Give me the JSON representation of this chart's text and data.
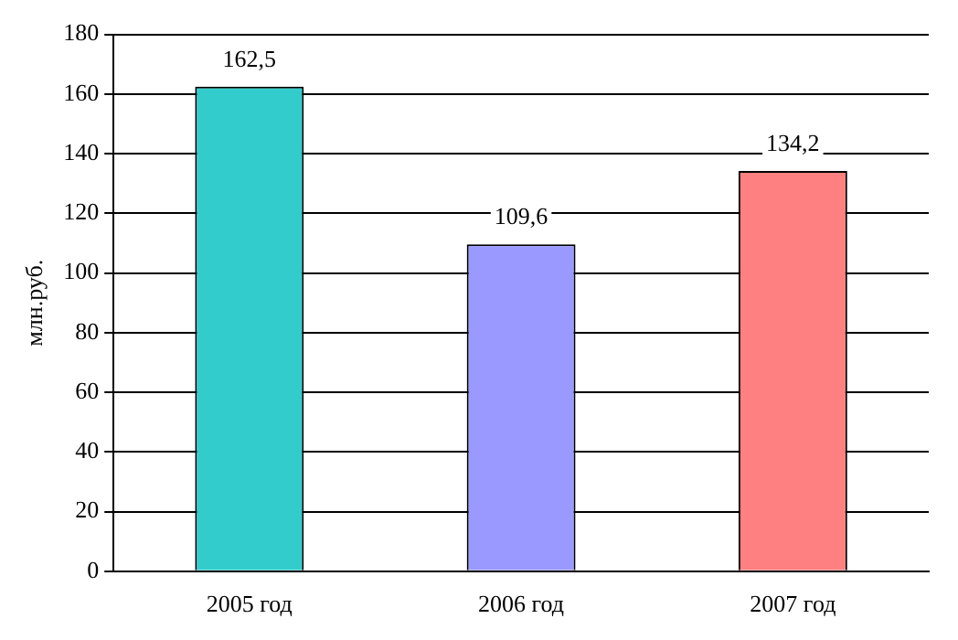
{
  "chart_data": {
    "type": "bar",
    "ylabel": "млн.руб.",
    "categories": [
      "2005 год",
      "2006 год",
      "2007 год"
    ],
    "values": [
      162.5,
      109.6,
      134.2
    ],
    "colors": [
      "#33cccc",
      "#9999ff",
      "#ff8080"
    ],
    "value_labels": [
      "162,5",
      "109,6",
      "134,2"
    ],
    "ylim": [
      0,
      180
    ],
    "yticks": [
      0,
      20,
      40,
      60,
      80,
      100,
      120,
      140,
      160,
      180
    ],
    "grid": "y",
    "legend": false
  }
}
